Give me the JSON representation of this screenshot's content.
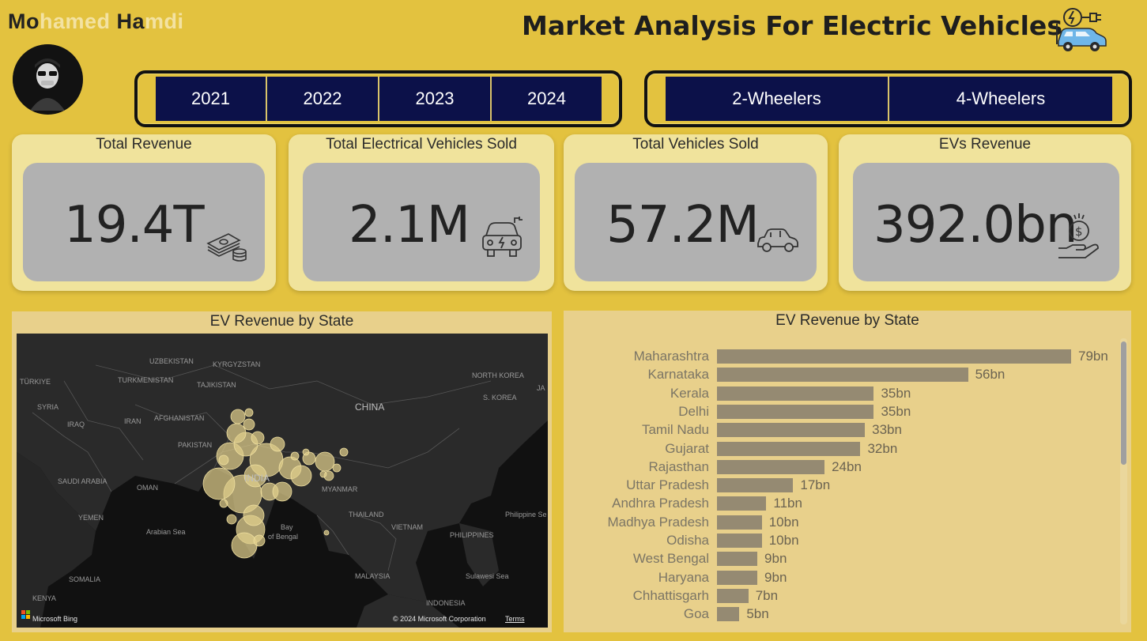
{
  "author": {
    "part1": "Mo",
    "part2": "hamed ",
    "part3": "Ha",
    "part4": "mdi"
  },
  "title": "Market Analysis For Electric Vehicles",
  "years": [
    "2021",
    "2022",
    "2023",
    "2024"
  ],
  "vehicle_types": [
    "2-Wheelers",
    "4-Wheelers"
  ],
  "kpis": [
    {
      "title": "Total Revenue",
      "value": "19.4T",
      "icon": "money-stack-icon"
    },
    {
      "title": "Total Electrical Vehicles Sold",
      "value": "2.1M",
      "icon": "ev-car-icon"
    },
    {
      "title": "Total Vehicles Sold",
      "value": "57.2M",
      "icon": "car-icon"
    },
    {
      "title": "EVs Revenue",
      "value": "392.0bn",
      "icon": "coin-hand-icon"
    }
  ],
  "map_panel": {
    "title": "EV Revenue by State",
    "labels": {
      "uzbekistan": "UZBEKISTAN",
      "kyrgyzstan": "KYRGYZSTAN",
      "turkiye": "TÜRKIYE",
      "turkmenistan": "TURKMENISTAN",
      "tajikistan": "TAJIKISTAN",
      "syria": "SYRIA",
      "iraq": "IRAQ",
      "iran": "IRAN",
      "afghanistan": "AFGHANISTAN",
      "pakistan": "PAKISTAN",
      "china": "CHINA",
      "north_korea": "NORTH KOREA",
      "s_korea": "S. KOREA",
      "saudi": "SAUDI ARABIA",
      "oman": "OMAN",
      "india": "INDIA",
      "yemen": "YEMEN",
      "arabian_sea": "Arabian Sea",
      "bay1": "Bay",
      "bay2": "of Bengal",
      "myanmar": "MYANMAR",
      "thailand": "THAILAND",
      "vietnam": "VIETNAM",
      "philippine_sea": "Philippine Se",
      "philippines": "PHILIPPINES",
      "malaysia": "MALAYSIA",
      "sulawesi": "Sulawesi Sea",
      "somalia": "SOMALIA",
      "kenya": "KENYA",
      "indonesia": "INDONESIA",
      "ja": "JA"
    },
    "bing": "Microsoft Bing",
    "copyright": "© 2024 Microsoft Corporation",
    "terms": "Terms"
  },
  "bar_panel": {
    "title": "EV Revenue by State"
  },
  "chart_data": {
    "type": "bar",
    "orientation": "horizontal",
    "title": "EV Revenue by State",
    "categories": [
      "Maharashtra",
      "Karnataka",
      "Kerala",
      "Delhi",
      "Tamil Nadu",
      "Gujarat",
      "Rajasthan",
      "Uttar Pradesh",
      "Andhra Pradesh",
      "Madhya Pradesh",
      "Odisha",
      "West Bengal",
      "Haryana",
      "Chhattisgarh",
      "Goa"
    ],
    "values": [
      79,
      56,
      35,
      35,
      33,
      32,
      24,
      17,
      11,
      10,
      10,
      9,
      9,
      7,
      5
    ],
    "value_labels": [
      "79bn",
      "56bn",
      "35bn",
      "35bn",
      "33bn",
      "32bn",
      "24bn",
      "17bn",
      "11bn",
      "10bn",
      "10bn",
      "9bn",
      "9bn",
      "7bn",
      "5bn"
    ],
    "unit": "bn",
    "bar_color": "#958a72"
  }
}
